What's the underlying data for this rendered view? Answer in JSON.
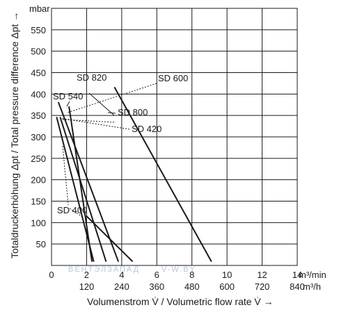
{
  "chart_data": {
    "type": "line",
    "xlabel": "Volumenstrom V̇ / Volumetric flow rate V̇ →",
    "ylabel": "Totaldruckerhöhung Δpt / Total pressure difference Δpt →",
    "y_unit": "mbar",
    "x_unit": "m³/min",
    "x2_unit": "m³/h",
    "xlim": [
      0,
      14
    ],
    "ylim": [
      0,
      600
    ],
    "x_ticks": [
      "0",
      "2",
      "4",
      "6",
      "8",
      "10",
      "12",
      "14"
    ],
    "x2_ticks": [
      "120",
      "240",
      "360",
      "480",
      "600",
      "720",
      "840"
    ],
    "y_ticks": [
      "50",
      "100",
      "150",
      "200",
      "250",
      "300",
      "350",
      "400",
      "450",
      "500",
      "550"
    ],
    "grid": true,
    "series": [
      {
        "name": "SD 400",
        "x": [
          1.0,
          2.3
        ],
        "y": [
          370,
          10
        ]
      },
      {
        "name": "SD 420",
        "x": [
          0.4,
          3.8
        ],
        "y": [
          380,
          10
        ]
      },
      {
        "name": "SD 540",
        "x": [
          0.5,
          3.1
        ],
        "y": [
          345,
          10
        ]
      },
      {
        "name": "SD 600",
        "x": [
          0.3,
          2.4
        ],
        "y": [
          345,
          10
        ]
      },
      {
        "name": "SD 800",
        "x": [
          2.0,
          4.6
        ],
        "y": [
          115,
          10
        ]
      },
      {
        "name": "SD 820",
        "x": [
          3.6,
          9.1
        ],
        "y": [
          415,
          10
        ]
      }
    ],
    "annotations": [
      "SD 820",
      "SD 600",
      "SD 540",
      "SD 800",
      "SD 420",
      "SD 400"
    ]
  },
  "watermark": {
    "text1": "ВЕНТЭЛЗАПАД",
    "text2": "V-W.BY"
  }
}
